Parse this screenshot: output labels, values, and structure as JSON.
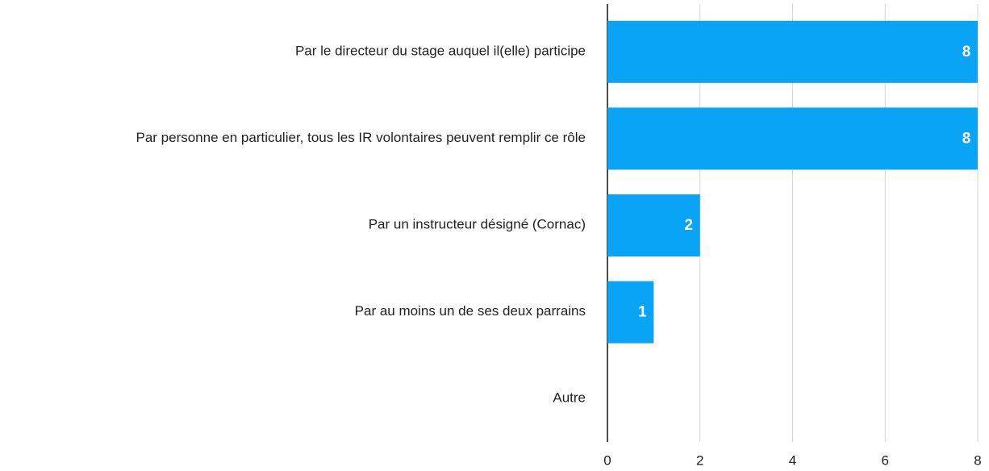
{
  "chart_data": {
    "type": "barh",
    "categories": [
      "Par le directeur du stage auquel il(elle) participe",
      "Par personne en particulier, tous les IR volontaires peuvent remplir ce rôle",
      "Par un instructeur désigné (Cornac)",
      "Par au moins un de ses deux parrains",
      "Autre"
    ],
    "values": [
      8,
      8,
      2,
      1,
      0
    ],
    "color": "#0aa4f6",
    "xlim": [
      0,
      8
    ],
    "xticks": [
      0,
      2,
      4,
      6,
      8
    ],
    "grid": true
  }
}
